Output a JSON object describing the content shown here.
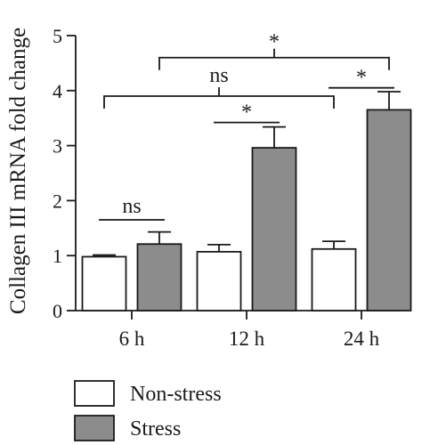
{
  "colors": {
    "non_stress": "#ffffff",
    "stress": "#8c8c8c",
    "outline": "#1a1a1a"
  },
  "chart_data": {
    "type": "bar",
    "ylabel": "Collagen III mRNA fold change",
    "xlabel": "",
    "ylim": [
      0,
      5
    ],
    "yticks": [
      0,
      1,
      2,
      3,
      4,
      5
    ],
    "categories": [
      "6 h",
      "12 h",
      "24 h"
    ],
    "series": [
      {
        "name": "Non-stress",
        "values": [
          0.98,
          1.07,
          1.12
        ],
        "errors": [
          0.03,
          0.13,
          0.14
        ]
      },
      {
        "name": "Stress",
        "values": [
          1.21,
          2.96,
          3.65
        ],
        "errors": [
          0.22,
          0.38,
          0.33
        ]
      }
    ],
    "legend_position": "bottom-left",
    "grid": false,
    "annotations": [
      {
        "label": "ns",
        "from": [
          0,
          0
        ],
        "to": [
          0,
          1
        ],
        "y": 1.65
      },
      {
        "label": "*",
        "from": [
          1,
          0
        ],
        "to": [
          1,
          1
        ],
        "y": 3.42
      },
      {
        "label": "*",
        "from": [
          2,
          0
        ],
        "to": [
          2,
          1
        ],
        "y": 4.05
      },
      {
        "label": "ns",
        "from": [
          0,
          0
        ],
        "to": [
          2,
          0
        ],
        "y": 3.9
      },
      {
        "label": "*",
        "from": [
          0,
          1
        ],
        "to": [
          2,
          1
        ],
        "y": 4.6
      }
    ]
  }
}
